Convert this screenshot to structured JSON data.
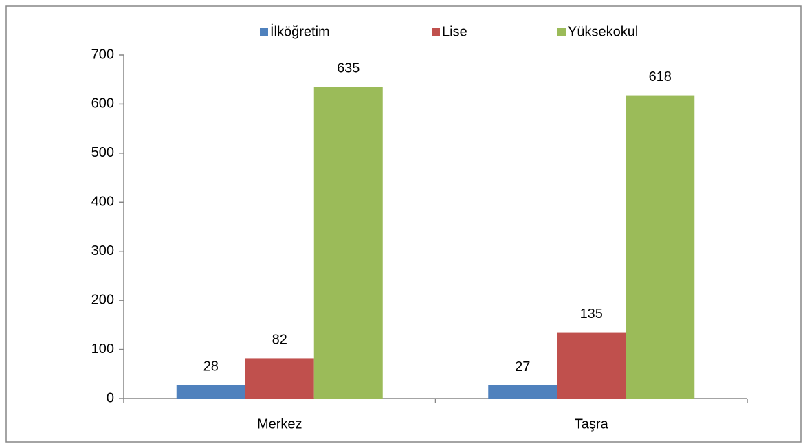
{
  "chart_data": {
    "type": "bar",
    "categories": [
      "Merkez",
      "Taşra"
    ],
    "series": [
      {
        "name": "İlköğretim",
        "color": "#4f81bd",
        "values": [
          28,
          27
        ]
      },
      {
        "name": "Lise",
        "color": "#c0504d",
        "values": [
          82,
          135
        ]
      },
      {
        "name": "Yüksekokul",
        "color": "#9bbb59",
        "values": [
          635,
          618
        ]
      }
    ],
    "ylim": [
      0,
      700
    ],
    "yticks": [
      0,
      100,
      200,
      300,
      400,
      500,
      600,
      700
    ],
    "legend": "top",
    "data_labels": true
  }
}
